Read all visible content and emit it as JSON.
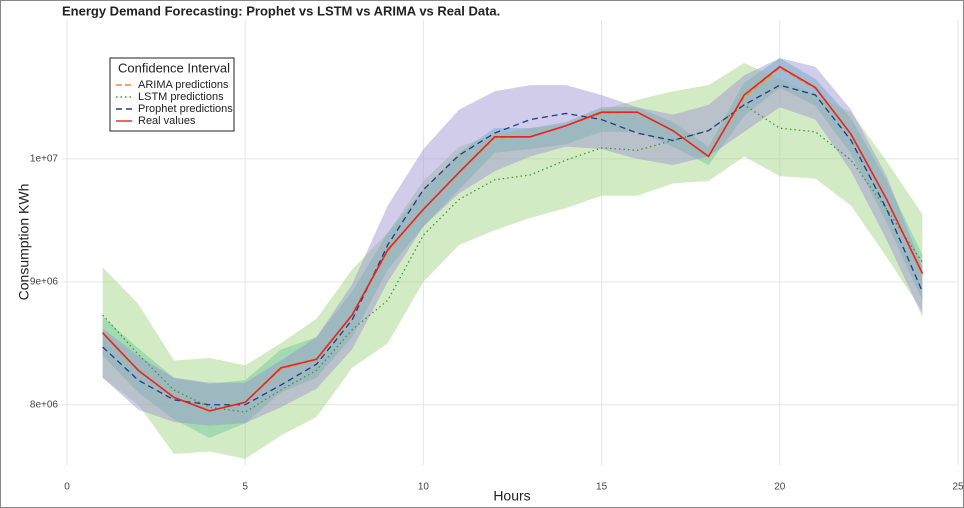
{
  "chart_data": {
    "type": "line",
    "title": "Energy Demand Forecasting: Prophet vs LSTM vs ARIMA vs Real Data.",
    "x_label": "Hours",
    "y_label": "Consumption KWh",
    "legend_title": "Confidence Interval",
    "legend_position": "top-left",
    "grid": true,
    "xlim": [
      0,
      25
    ],
    "xticks": [
      0,
      5,
      10,
      15,
      20,
      25
    ],
    "ylim": [
      7510000,
      11130000
    ],
    "yticks": [
      {
        "value": 8000000,
        "label": "8e+06"
      },
      {
        "value": 9000000,
        "label": "9e+06"
      },
      {
        "value": 10000000,
        "label": "1e+07"
      }
    ],
    "x": [
      1,
      2,
      3,
      4,
      5,
      6,
      7,
      8,
      9,
      10,
      11,
      12,
      13,
      14,
      15,
      16,
      17,
      18,
      19,
      20,
      21,
      22,
      23,
      24
    ],
    "series": [
      {
        "name": "ARIMA predictions",
        "color": "#f28c28",
        "dash": "6 3",
        "values": [
          8590000,
          8280000,
          8060000,
          7950000,
          8020000,
          8290000,
          8370000,
          8730000,
          9250000,
          9590000,
          9890000,
          10170000,
          10180000,
          10270000,
          10370000,
          10380000,
          10230000,
          10020000,
          10500000,
          10740000,
          10570000,
          10200000,
          9670000,
          9060000
        ],
        "band": {
          "color": "#3fbfb0",
          "upper": [
            8720000,
            8460000,
            8220000,
            8170000,
            8200000,
            8450000,
            8550000,
            8920000,
            9400000,
            9750000,
            10050000,
            10250000,
            10250000,
            10300000,
            10420000,
            10420000,
            10300000,
            10100000,
            10620000,
            10820000,
            10650000,
            10330000,
            9820000,
            9220000
          ],
          "lower": [
            8400000,
            8100000,
            7880000,
            7730000,
            7850000,
            8100000,
            8220000,
            8550000,
            9100000,
            9450000,
            9750000,
            10050000,
            10080000,
            10120000,
            10220000,
            10220000,
            10100000,
            9950000,
            10350000,
            10580000,
            10430000,
            10040000,
            9480000,
            8850000
          ]
        }
      },
      {
        "name": "LSTM predictions",
        "color": "#3a9a3a",
        "dash": "1.5 3",
        "values": [
          8730000,
          8410000,
          8120000,
          7980000,
          7940000,
          8120000,
          8280000,
          8610000,
          8850000,
          9380000,
          9670000,
          9830000,
          9870000,
          9990000,
          10090000,
          10070000,
          10150000,
          10230000,
          10440000,
          10250000,
          10220000,
          9990000,
          9590000,
          9160000
        ],
        "band": {
          "color": "#9ed27f",
          "upper": [
            9120000,
            8820000,
            8360000,
            8380000,
            8320000,
            8500000,
            8700000,
            9100000,
            9400000,
            9820000,
            10100000,
            10200000,
            10250000,
            10280000,
            10400000,
            10480000,
            10550000,
            10600000,
            10780000,
            10650000,
            10520000,
            10380000,
            9980000,
            9550000
          ],
          "lower": [
            8220000,
            8000000,
            7600000,
            7620000,
            7560000,
            7750000,
            7900000,
            8300000,
            8500000,
            9000000,
            9300000,
            9420000,
            9520000,
            9600000,
            9700000,
            9700000,
            9800000,
            9820000,
            10020000,
            9860000,
            9840000,
            9620000,
            9200000,
            8760000
          ]
        }
      },
      {
        "name": "Prophet predictions",
        "color": "#1f3b8c",
        "dash": "6 4",
        "values": [
          8470000,
          8200000,
          8040000,
          8000000,
          8000000,
          8160000,
          8330000,
          8690000,
          9300000,
          9750000,
          10030000,
          10210000,
          10320000,
          10370000,
          10320000,
          10210000,
          10150000,
          10230000,
          10440000,
          10600000,
          10520000,
          10150000,
          9590000,
          8920000
        ],
        "band": {
          "color": "#9a8fd0",
          "upper": [
            8620000,
            8400000,
            8220000,
            8180000,
            8180000,
            8360000,
            8550000,
            8980000,
            9620000,
            10080000,
            10400000,
            10550000,
            10600000,
            10600000,
            10520000,
            10420000,
            10360000,
            10440000,
            10680000,
            10820000,
            10750000,
            10400000,
            9860000,
            9120000
          ],
          "lower": [
            8220000,
            7960000,
            7860000,
            7830000,
            7850000,
            7980000,
            8130000,
            8450000,
            9000000,
            9450000,
            9720000,
            9900000,
            10020000,
            10100000,
            10080000,
            10000000,
            9950000,
            10020000,
            10220000,
            10420000,
            10320000,
            9900000,
            9340000,
            8720000
          ]
        }
      },
      {
        "name": "Real values",
        "color": "#e8251a",
        "values": [
          8585000,
          8280000,
          8060000,
          7950000,
          8020000,
          8300000,
          8370000,
          8730000,
          9260000,
          9590000,
          9890000,
          10180000,
          10180000,
          10270000,
          10380000,
          10380000,
          10230000,
          10020000,
          10520000,
          10750000,
          10580000,
          10200000,
          9670000,
          9070000
        ]
      }
    ]
  }
}
